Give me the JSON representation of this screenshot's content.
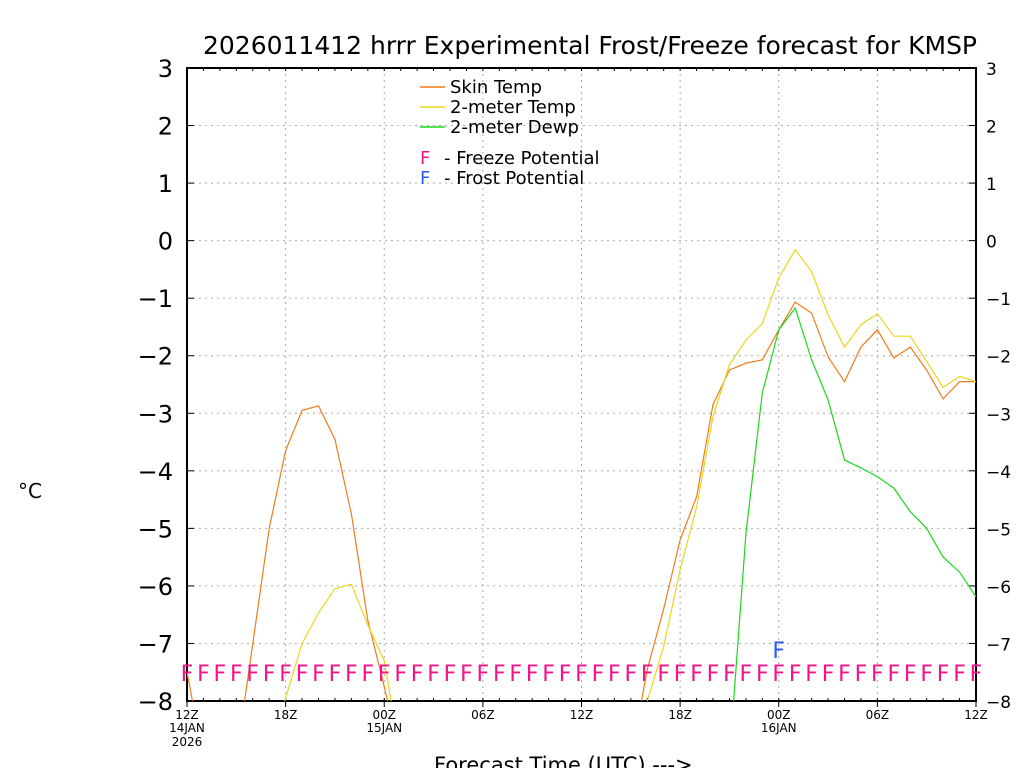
{
  "chart_data": {
    "type": "line",
    "title": "2026011412 hrrr Experimental Frost/Freeze forecast for KMSP",
    "xlabel": "Forecast Time (UTC) --->",
    "ylabel": "°C",
    "ylim": [
      -8,
      3
    ],
    "yticks": [
      3,
      2,
      1,
      0,
      -1,
      -2,
      -3,
      -4,
      -5,
      -6,
      -7,
      -8
    ],
    "x_hours_range": [
      0,
      48
    ],
    "x_ticks": [
      {
        "hour": 0,
        "label": "12Z",
        "sub": "14JAN",
        "sub2": "2026"
      },
      {
        "hour": 6,
        "label": "18Z",
        "sub": "",
        "sub2": ""
      },
      {
        "hour": 12,
        "label": "00Z",
        "sub": "15JAN",
        "sub2": ""
      },
      {
        "hour": 18,
        "label": "06Z",
        "sub": "",
        "sub2": ""
      },
      {
        "hour": 24,
        "label": "12Z",
        "sub": "",
        "sub2": ""
      },
      {
        "hour": 30,
        "label": "18Z",
        "sub": "",
        "sub2": ""
      },
      {
        "hour": 36,
        "label": "00Z",
        "sub": "16JAN",
        "sub2": ""
      },
      {
        "hour": 42,
        "label": "06Z",
        "sub": "",
        "sub2": ""
      },
      {
        "hour": 48,
        "label": "12Z",
        "sub": "",
        "sub2": ""
      }
    ],
    "grid": true,
    "legend_position": "top-left",
    "series": [
      {
        "name": "Skin Temp",
        "color": "#f07c1c",
        "values": [
          -7.5,
          null,
          null,
          null,
          -7.0,
          -5.0,
          -3.65,
          -2.95,
          -2.87,
          -3.45,
          -4.75,
          -6.6,
          -7.75,
          null,
          null,
          null,
          null,
          null,
          null,
          null,
          null,
          null,
          null,
          null,
          null,
          null,
          null,
          null,
          -7.45,
          -6.4,
          -5.2,
          -4.45,
          -2.85,
          -2.25,
          -2.13,
          -2.07,
          -1.55,
          -1.07,
          -1.26,
          -2.02,
          -2.45,
          -1.85,
          -1.55,
          -2.04,
          -1.85,
          -2.25,
          -2.75,
          -2.45,
          -2.45
        ]
      },
      {
        "name": "2-meter Temp",
        "color": "#e8d81c",
        "values": [
          null,
          null,
          null,
          null,
          null,
          null,
          -7.95,
          -7.0,
          -6.47,
          -6.05,
          -5.97,
          -6.68,
          -7.3,
          null,
          null,
          null,
          null,
          null,
          null,
          null,
          null,
          null,
          null,
          null,
          null,
          null,
          null,
          null,
          -8.0,
          -7.05,
          -5.72,
          -4.63,
          -3.06,
          -2.16,
          -1.73,
          -1.44,
          -0.65,
          -0.16,
          -0.54,
          -1.29,
          -1.85,
          -1.46,
          -1.27,
          -1.66,
          -1.66,
          -2.1,
          -2.55,
          -2.36,
          -2.45
        ]
      },
      {
        "name": "2-meter Dewp",
        "color": "#1cd81c",
        "values": [
          null,
          null,
          null,
          null,
          null,
          null,
          null,
          null,
          null,
          null,
          null,
          null,
          null,
          null,
          null,
          null,
          null,
          null,
          null,
          null,
          null,
          null,
          null,
          null,
          null,
          null,
          null,
          null,
          null,
          null,
          null,
          null,
          null,
          null,
          -5.1,
          -2.65,
          -1.55,
          -1.17,
          -2.07,
          -2.77,
          -3.81,
          -3.95,
          -4.1,
          -4.3,
          -4.71,
          -5.0,
          -5.5,
          -5.76,
          -6.19
        ]
      }
    ],
    "markers": [
      {
        "name": "Freeze Potential",
        "symbol": "F",
        "color": "#f0148c",
        "legend": "F  -  Freeze Potential",
        "level": -7.5,
        "hours": [
          0,
          1,
          2,
          3,
          4,
          5,
          6,
          7,
          8,
          9,
          10,
          11,
          12,
          13,
          14,
          15,
          16,
          17,
          18,
          19,
          20,
          21,
          22,
          23,
          24,
          25,
          26,
          27,
          28,
          29,
          30,
          31,
          32,
          33,
          34,
          35,
          36,
          37,
          38,
          39,
          40,
          41,
          42,
          43,
          44,
          45,
          46,
          47,
          48
        ]
      },
      {
        "name": "Frost Potential",
        "symbol": "F",
        "color": "#2c5cf0",
        "legend": "F  -  Frost Potential",
        "level": -7.1,
        "hours": [
          36
        ]
      }
    ]
  }
}
